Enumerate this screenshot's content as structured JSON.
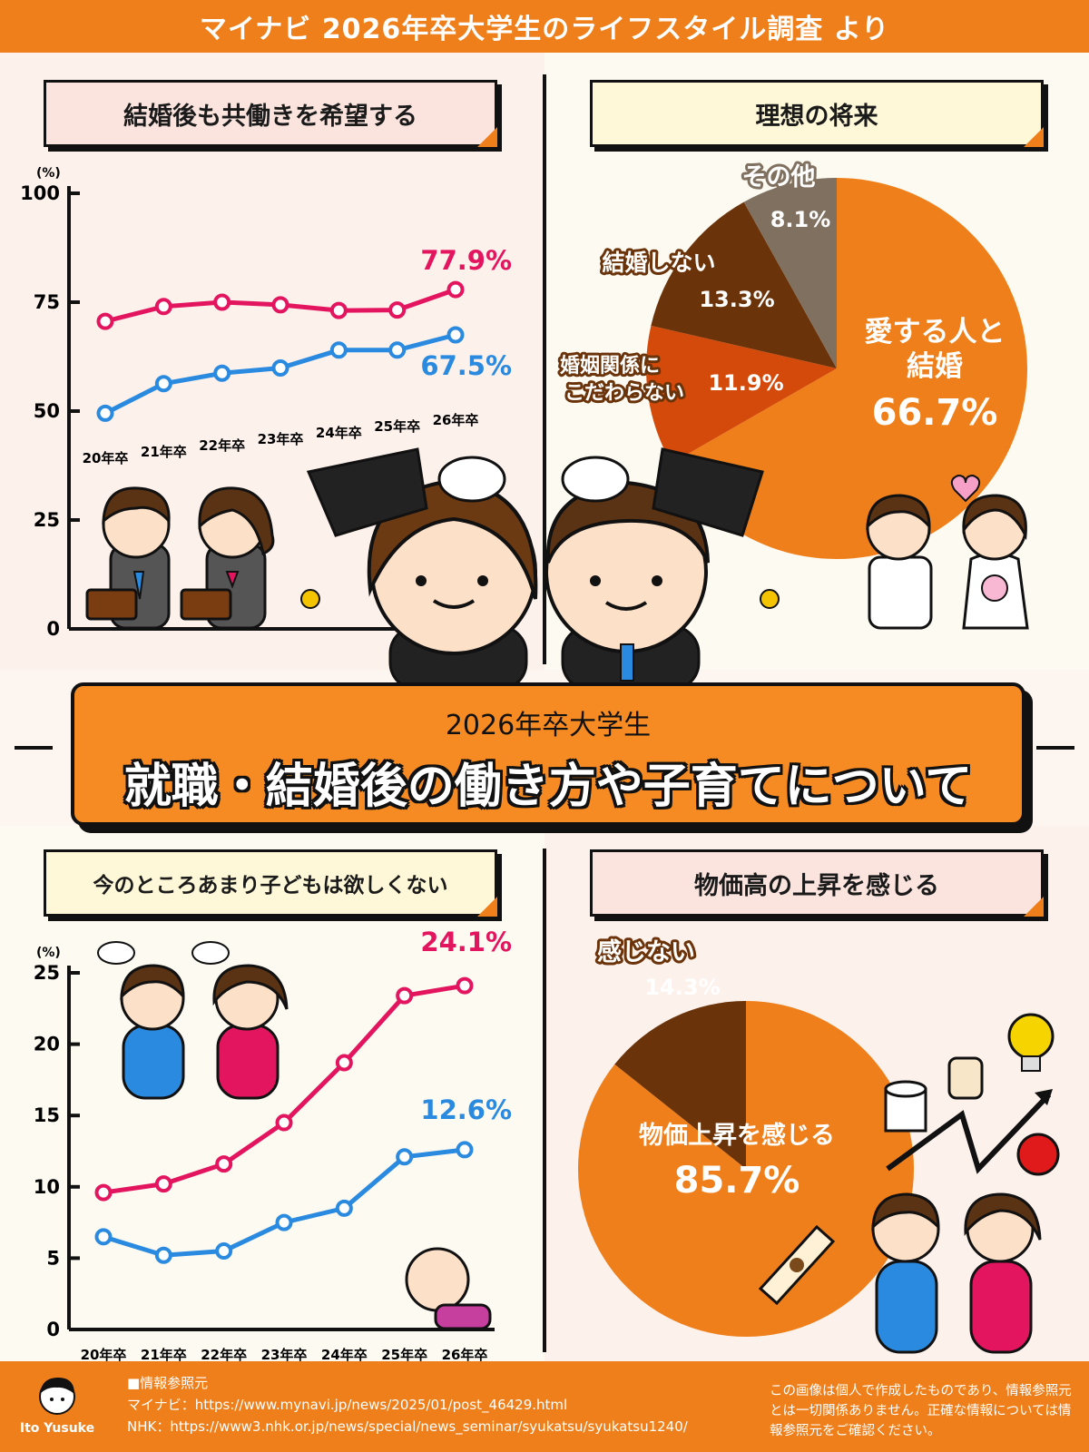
{
  "header": {
    "title": "マイナビ 2026年卒大学生のライフスタイル調査 より"
  },
  "banner": {
    "subtitle": "2026年卒大学生",
    "title": "就職・結婚後の働き方や子育てについて"
  },
  "panels": {
    "dual_income": {
      "title": "結婚後も共働きを希望する"
    },
    "future": {
      "title": "理想の将来"
    },
    "children": {
      "title": "今のところあまり子どもは欲しくない"
    },
    "prices": {
      "title": "物価高の上昇を感じる"
    }
  },
  "colors": {
    "orange": "#ef7f1a",
    "pink": "#e3155f",
    "blue": "#2a8ae0",
    "dark_brown": "#6b3309",
    "red_orange": "#d44a0a",
    "gray_brown": "#80705f"
  },
  "chart_data": [
    {
      "type": "line",
      "id": "dual_income",
      "unit": "(%)",
      "ylim": [
        0,
        100
      ],
      "yticks": [
        0,
        25,
        50,
        75,
        100
      ],
      "categories": [
        "20年卒",
        "21年卒",
        "22年卒",
        "23年卒",
        "24年卒",
        "25年卒",
        "26年卒"
      ],
      "series": [
        {
          "values": [
            70.6,
            74.0,
            75.0,
            74.4,
            73.1,
            73.2,
            77.9
          ],
          "color": "#e3155f",
          "end_label": "77.9%"
        },
        {
          "values": [
            49.5,
            56.3,
            58.7,
            59.9,
            64.0,
            64.0,
            67.5
          ],
          "color": "#2a8ae0",
          "end_label": "67.5%"
        }
      ]
    },
    {
      "type": "pie",
      "id": "future",
      "slices": [
        {
          "label": "愛する人と結婚",
          "value": 66.7,
          "value_label": "66.7%",
          "color": "#ef7f1a"
        },
        {
          "label": "婚姻関係にこだわらない",
          "value": 11.9,
          "value_label": "11.9%",
          "color": "#d44a0a"
        },
        {
          "label": "結婚しない",
          "value": 13.3,
          "value_label": "13.3%",
          "color": "#6b3309"
        },
        {
          "label": "その他",
          "value": 8.1,
          "value_label": "8.1%",
          "color": "#80705f"
        }
      ]
    },
    {
      "type": "line",
      "id": "children",
      "unit": "(%)",
      "ylim": [
        0,
        25
      ],
      "yticks": [
        0,
        5,
        10,
        15,
        20,
        25
      ],
      "categories": [
        "20年卒",
        "21年卒",
        "22年卒",
        "23年卒",
        "24年卒",
        "25年卒",
        "26年卒"
      ],
      "series": [
        {
          "values": [
            9.6,
            10.2,
            11.6,
            14.5,
            18.7,
            23.4,
            24.1
          ],
          "color": "#e3155f",
          "end_label": "24.1%"
        },
        {
          "values": [
            6.5,
            5.2,
            5.5,
            7.5,
            8.5,
            12.1,
            12.6
          ],
          "color": "#2a8ae0",
          "end_label": "12.6%"
        }
      ]
    },
    {
      "type": "pie",
      "id": "prices",
      "slices": [
        {
          "label": "物価上昇を感じる",
          "value": 85.7,
          "value_label": "85.7%",
          "color": "#ef7f1a"
        },
        {
          "label": "感じない",
          "value": 14.3,
          "value_label": "14.3%",
          "color": "#6b3309"
        }
      ]
    }
  ],
  "pie_labels": {
    "future": {
      "main_line1": "愛する人と",
      "main_line2": "結婚",
      "main_value": "66.7%",
      "dont_care_line1": "婚姻関係に",
      "dont_care_line2": "こだわらない",
      "dont_care_value": "11.9%",
      "no_marry": "結婚しない",
      "no_marry_value": "13.3%",
      "other": "その他",
      "other_value": "8.1%"
    },
    "prices": {
      "feel": "物価上昇を感じる",
      "feel_value": "85.7%",
      "not_feel": "感じない",
      "not_feel_value": "14.3%"
    }
  },
  "footer": {
    "logo_name": "Ito Yusuke",
    "source_heading": "■情報参照元",
    "source_mynavi": "マイナビ：https://www.mynavi.jp/news/2025/01/post_46429.html",
    "source_nhk": "NHK：https://www3.nhk.or.jp/news/special/news_seminar/syukatsu/syukatsu1240/",
    "disclaimer": "この画像は個人で作成したものであり、情報参照元とは一切関係ありません。正確な情報については情報参照元をご確認ください。"
  }
}
